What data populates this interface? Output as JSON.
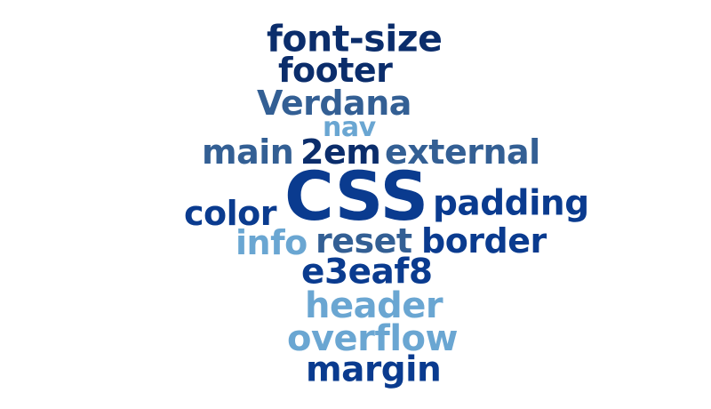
{
  "word_cloud": {
    "words": [
      {
        "text": "font-size",
        "color": "#0b2d6b",
        "weight": 3
      },
      {
        "text": "footer",
        "color": "#0b2d6b",
        "weight": 3
      },
      {
        "text": "Verdana",
        "color": "#335f94",
        "weight": 3
      },
      {
        "text": "nav",
        "color": "#6aa6d2",
        "weight": 2
      },
      {
        "text": "main",
        "color": "#335f94",
        "weight": 3
      },
      {
        "text": "2em",
        "color": "#0b2d6b",
        "weight": 3
      },
      {
        "text": "external",
        "color": "#335f94",
        "weight": 3
      },
      {
        "text": "CSS",
        "color": "#0a3b8f",
        "weight": 6
      },
      {
        "text": "padding",
        "color": "#0a3b8f",
        "weight": 3
      },
      {
        "text": "color",
        "color": "#0a3b8f",
        "weight": 3
      },
      {
        "text": "info",
        "color": "#6aa6d2",
        "weight": 3
      },
      {
        "text": "reset",
        "color": "#335f94",
        "weight": 3
      },
      {
        "text": "border",
        "color": "#0a3b8f",
        "weight": 3
      },
      {
        "text": "e3eaf8",
        "color": "#0a3b8f",
        "weight": 3
      },
      {
        "text": "header",
        "color": "#6aa6d2",
        "weight": 3
      },
      {
        "text": "overflow",
        "color": "#6aa6d2",
        "weight": 3
      },
      {
        "text": "margin",
        "color": "#0a3b8f",
        "weight": 3
      }
    ]
  }
}
